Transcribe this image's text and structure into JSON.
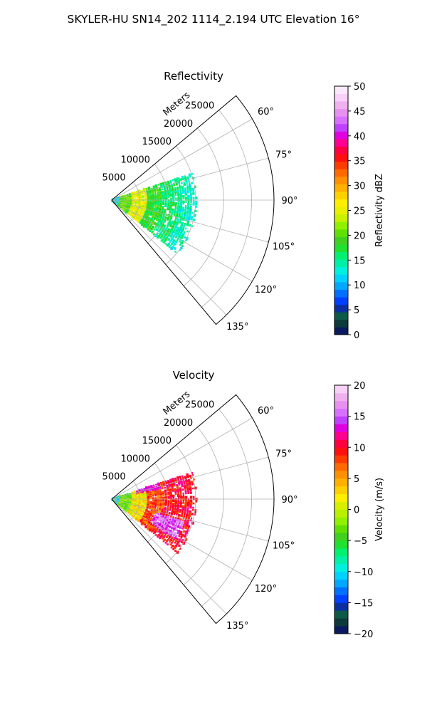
{
  "figure": {
    "suptitle": "SKYLER-HU  SN14_202  1114_2.194 UTC Elevation 16°"
  },
  "chart_data": [
    {
      "type": "heatmap",
      "projection": "polar-sector",
      "title": "Reflectivity",
      "range_axis_label": "Meters",
      "range_ticks": [
        5000,
        10000,
        15000,
        20000,
        25000
      ],
      "range_tick_labels": [
        "5000",
        "10000",
        "15000",
        "20000",
        "25000"
      ],
      "range_max": 29000,
      "angle_ticks_deg": [
        60,
        75,
        90,
        105,
        120,
        135
      ],
      "angle_tick_labels": [
        "60°",
        "75°",
        "90°",
        "105°",
        "120°",
        "135°"
      ],
      "angle_range_deg": [
        50,
        140
      ],
      "grid": true,
      "colorbar": {
        "label": "Reflectivity dBZ",
        "min": 0,
        "max": 50,
        "ticks": [
          0,
          5,
          10,
          15,
          20,
          25,
          30,
          35,
          40,
          45,
          50
        ],
        "tick_labels": [
          "0",
          "5",
          "10",
          "15",
          "20",
          "25",
          "30",
          "35",
          "40",
          "45",
          "50"
        ]
      },
      "echo_extent_m": {
        "near_range": 14000,
        "far_range": 15500,
        "azimuth_min_deg": 72,
        "azimuth_max_deg": 129
      },
      "echo_bands": [
        {
          "range_m": [
            0,
            1500
          ],
          "value": 12
        },
        {
          "range_m": [
            1500,
            3500
          ],
          "value": 20
        },
        {
          "range_m": [
            3500,
            6500
          ],
          "value": 25
        },
        {
          "range_m": [
            6500,
            9000
          ],
          "value": 18
        },
        {
          "range_m": [
            9000,
            12000
          ],
          "value": 16
        },
        {
          "range_m": [
            12000,
            15500
          ],
          "value": 14
        }
      ]
    },
    {
      "type": "heatmap",
      "projection": "polar-sector",
      "title": "Velocity",
      "range_axis_label": "Meters",
      "range_ticks": [
        5000,
        10000,
        15000,
        20000,
        25000
      ],
      "range_tick_labels": [
        "5000",
        "10000",
        "15000",
        "20000",
        "25000"
      ],
      "range_max": 29000,
      "angle_ticks_deg": [
        60,
        75,
        90,
        105,
        120,
        135
      ],
      "angle_tick_labels": [
        "60°",
        "75°",
        "90°",
        "105°",
        "120°",
        "135°"
      ],
      "angle_range_deg": [
        50,
        140
      ],
      "grid": true,
      "colorbar": {
        "label": "Velocity (m/s)",
        "min": -20,
        "max": 20,
        "ticks": [
          -20,
          -15,
          -10,
          -5,
          0,
          5,
          10,
          15,
          20
        ],
        "tick_labels": [
          "−20",
          "−15",
          "−10",
          "−5",
          "0",
          "5",
          "10",
          "15",
          "20"
        ]
      },
      "echo_extent_m": {
        "near_range": 14000,
        "far_range": 15500,
        "azimuth_min_deg": 72,
        "azimuth_max_deg": 129
      },
      "echo_bands": [
        {
          "range_m": [
            0,
            1500
          ],
          "value": -9
        },
        {
          "range_m": [
            1500,
            3500
          ],
          "value": -3
        },
        {
          "range_m": [
            3500,
            6500
          ],
          "value": 2
        },
        {
          "range_m": [
            6500,
            9500
          ],
          "value": 8
        },
        {
          "range_m": [
            9500,
            15500
          ],
          "value": 10
        }
      ],
      "azimuth_regions": [
        {
          "azimuth_deg": [
            108,
            122
          ],
          "range_m": [
            8000,
            13500
          ],
          "value": 15
        },
        {
          "azimuth_deg": [
            68,
            78
          ],
          "range_m": [
            4500,
            9000
          ],
          "value": 13
        }
      ]
    }
  ],
  "colors": {
    "grid": "#b0b0b0",
    "frame": "#000000"
  }
}
